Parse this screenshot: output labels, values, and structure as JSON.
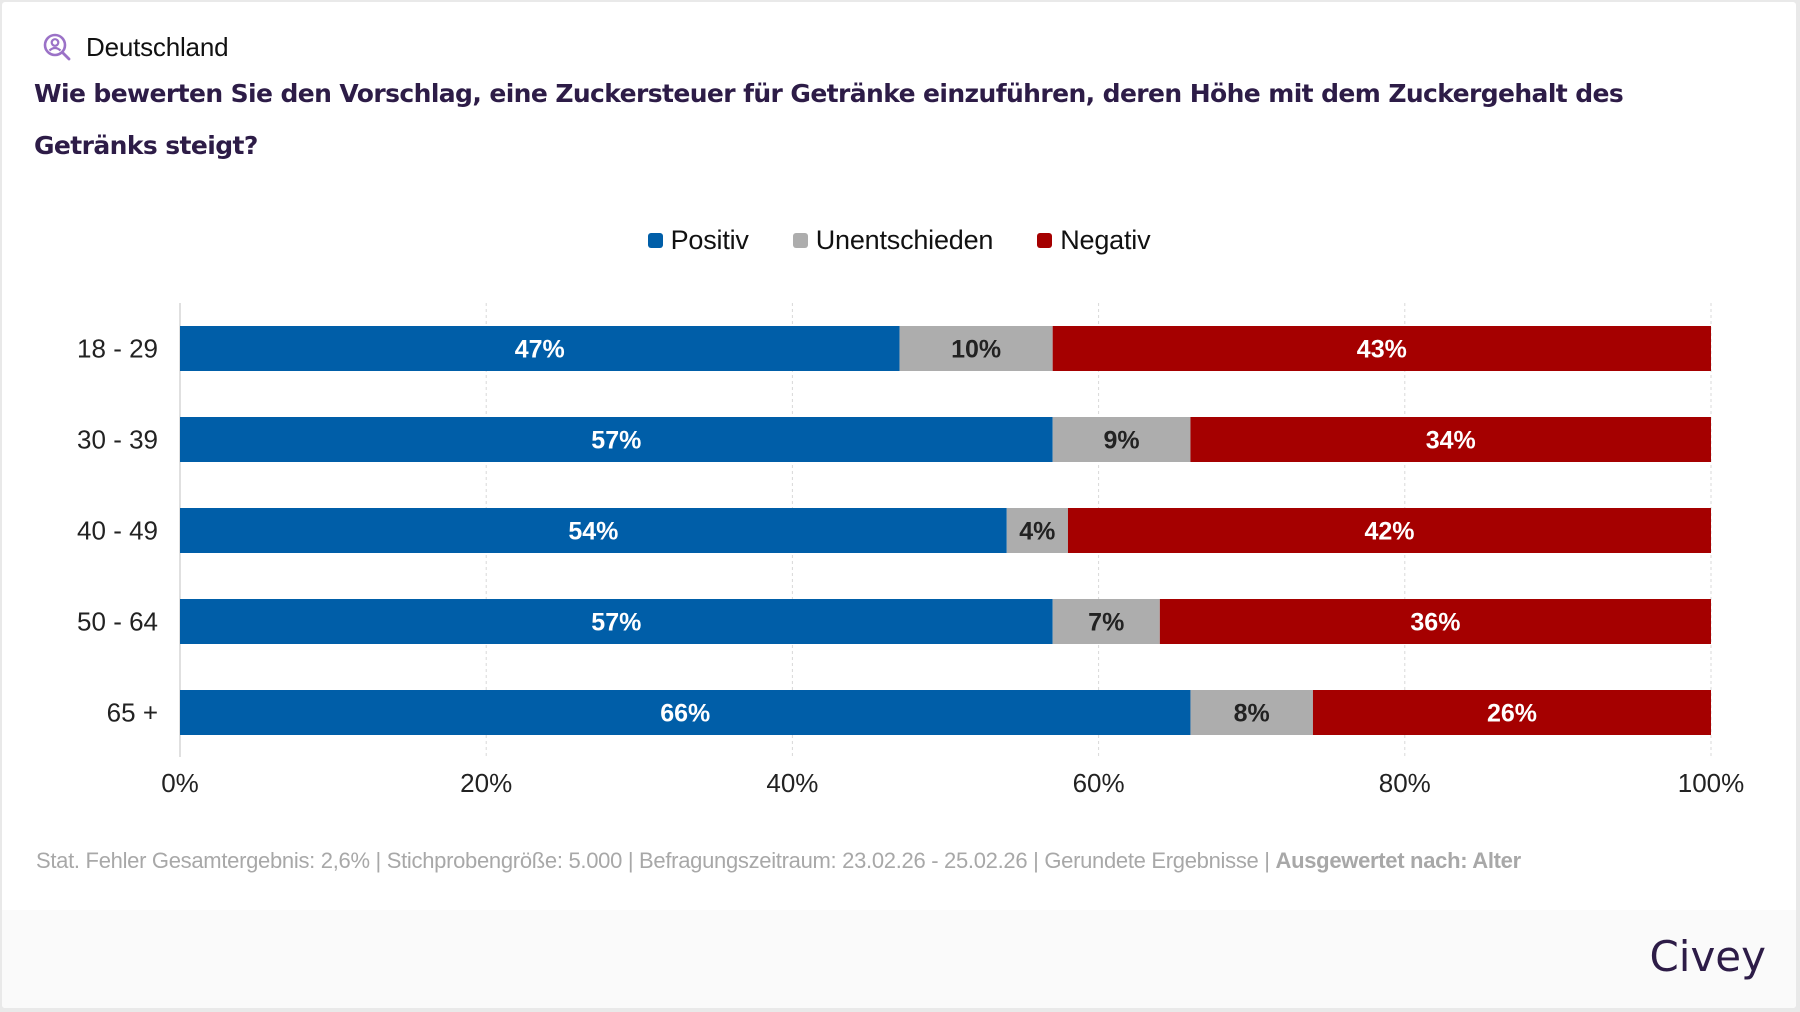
{
  "header": {
    "location_icon": "location-search-person-icon",
    "location": "Deutschland",
    "question": "Wie bewerten Sie den Vorschlag, eine Zuckersteuer für Getränke einzuführen, deren Höhe mit dem Zuckergehalt des Getränks steigt?"
  },
  "colors": {
    "positive": "#005ea8",
    "undecided": "#adadad",
    "negative": "#a50000",
    "title": "#2d1c47",
    "icon": "#9b72c7"
  },
  "chart_data": {
    "type": "bar",
    "orientation": "horizontal",
    "stacked": true,
    "title": "Wie bewerten Sie den Vorschlag, eine Zuckersteuer für Getränke einzuführen, deren Höhe mit dem Zuckergehalt des Getränks steigt?",
    "xlabel": "",
    "ylabel": "",
    "categories": [
      "18 - 29",
      "30 - 39",
      "40 - 49",
      "50 - 64",
      "65 +"
    ],
    "series": [
      {
        "name": "Positiv",
        "color": "#005ea8",
        "label_color": "#ffffff",
        "values": [
          47,
          57,
          54,
          57,
          66
        ]
      },
      {
        "name": "Unentschieden",
        "color": "#adadad",
        "label_color": "#222222",
        "values": [
          10,
          9,
          4,
          7,
          8
        ]
      },
      {
        "name": "Negativ",
        "color": "#a50000",
        "label_color": "#ffffff",
        "values": [
          43,
          34,
          42,
          36,
          26
        ]
      }
    ],
    "xlim": [
      0,
      100
    ],
    "x_ticks": [
      0,
      20,
      40,
      60,
      80,
      100
    ],
    "x_tick_labels": [
      "0%",
      "20%",
      "40%",
      "60%",
      "80%",
      "100%"
    ],
    "value_suffix": "%",
    "grid": "vertical-dotted",
    "legend_position": "top-center"
  },
  "footer": {
    "note_plain": "Stat. Fehler Gesamtergebnis: 2,6% | Stichprobengröße: 5.000 | Befragungszeitraum: 23.02.26 - 25.02.26 | Gerundete Ergebnisse | ",
    "note_bold": "Ausgewertet nach: Alter",
    "brand": "Civey"
  }
}
